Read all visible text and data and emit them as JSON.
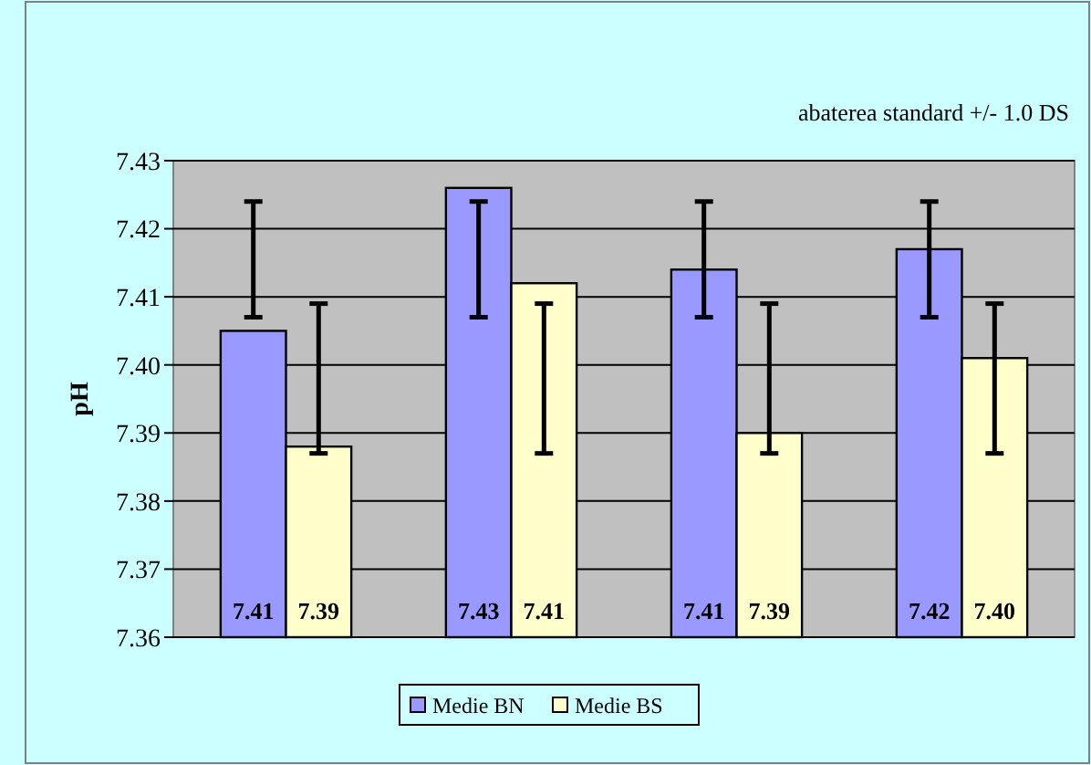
{
  "chart_data": {
    "type": "bar",
    "ylabel": "pH",
    "annotations": [
      "abaterea standard +/- 1.0 DS"
    ],
    "categories": [
      null,
      null,
      null,
      null
    ],
    "series": [
      {
        "name": "Medie BN",
        "color": "#9999ff",
        "values": [
          7.405,
          7.426,
          7.414,
          7.417
        ],
        "value_labels": [
          "7.41",
          "7.43",
          "7.41",
          "7.42"
        ],
        "errors": [
          [
            7.407,
            7.424
          ],
          [
            7.407,
            7.424
          ],
          [
            7.407,
            7.424
          ],
          [
            7.407,
            7.424
          ]
        ]
      },
      {
        "name": "Medie BS",
        "color": "#ffffcc",
        "values": [
          7.388,
          7.412,
          7.39,
          7.401
        ],
        "value_labels": [
          "7.39",
          "7.41",
          "7.39",
          "7.40"
        ],
        "errors": [
          [
            7.387,
            7.409
          ],
          [
            7.387,
            7.409
          ],
          [
            7.387,
            7.409
          ],
          [
            7.387,
            7.409
          ]
        ]
      }
    ],
    "ylim": [
      7.36,
      7.43
    ],
    "yticks": [
      7.36,
      7.37,
      7.38,
      7.39,
      {
        "value": 7.4,
        "label": "7.40"
      },
      7.41,
      7.42,
      7.43
    ],
    "grid": "y",
    "legend": "bottom",
    "tick_labels": "y"
  }
}
